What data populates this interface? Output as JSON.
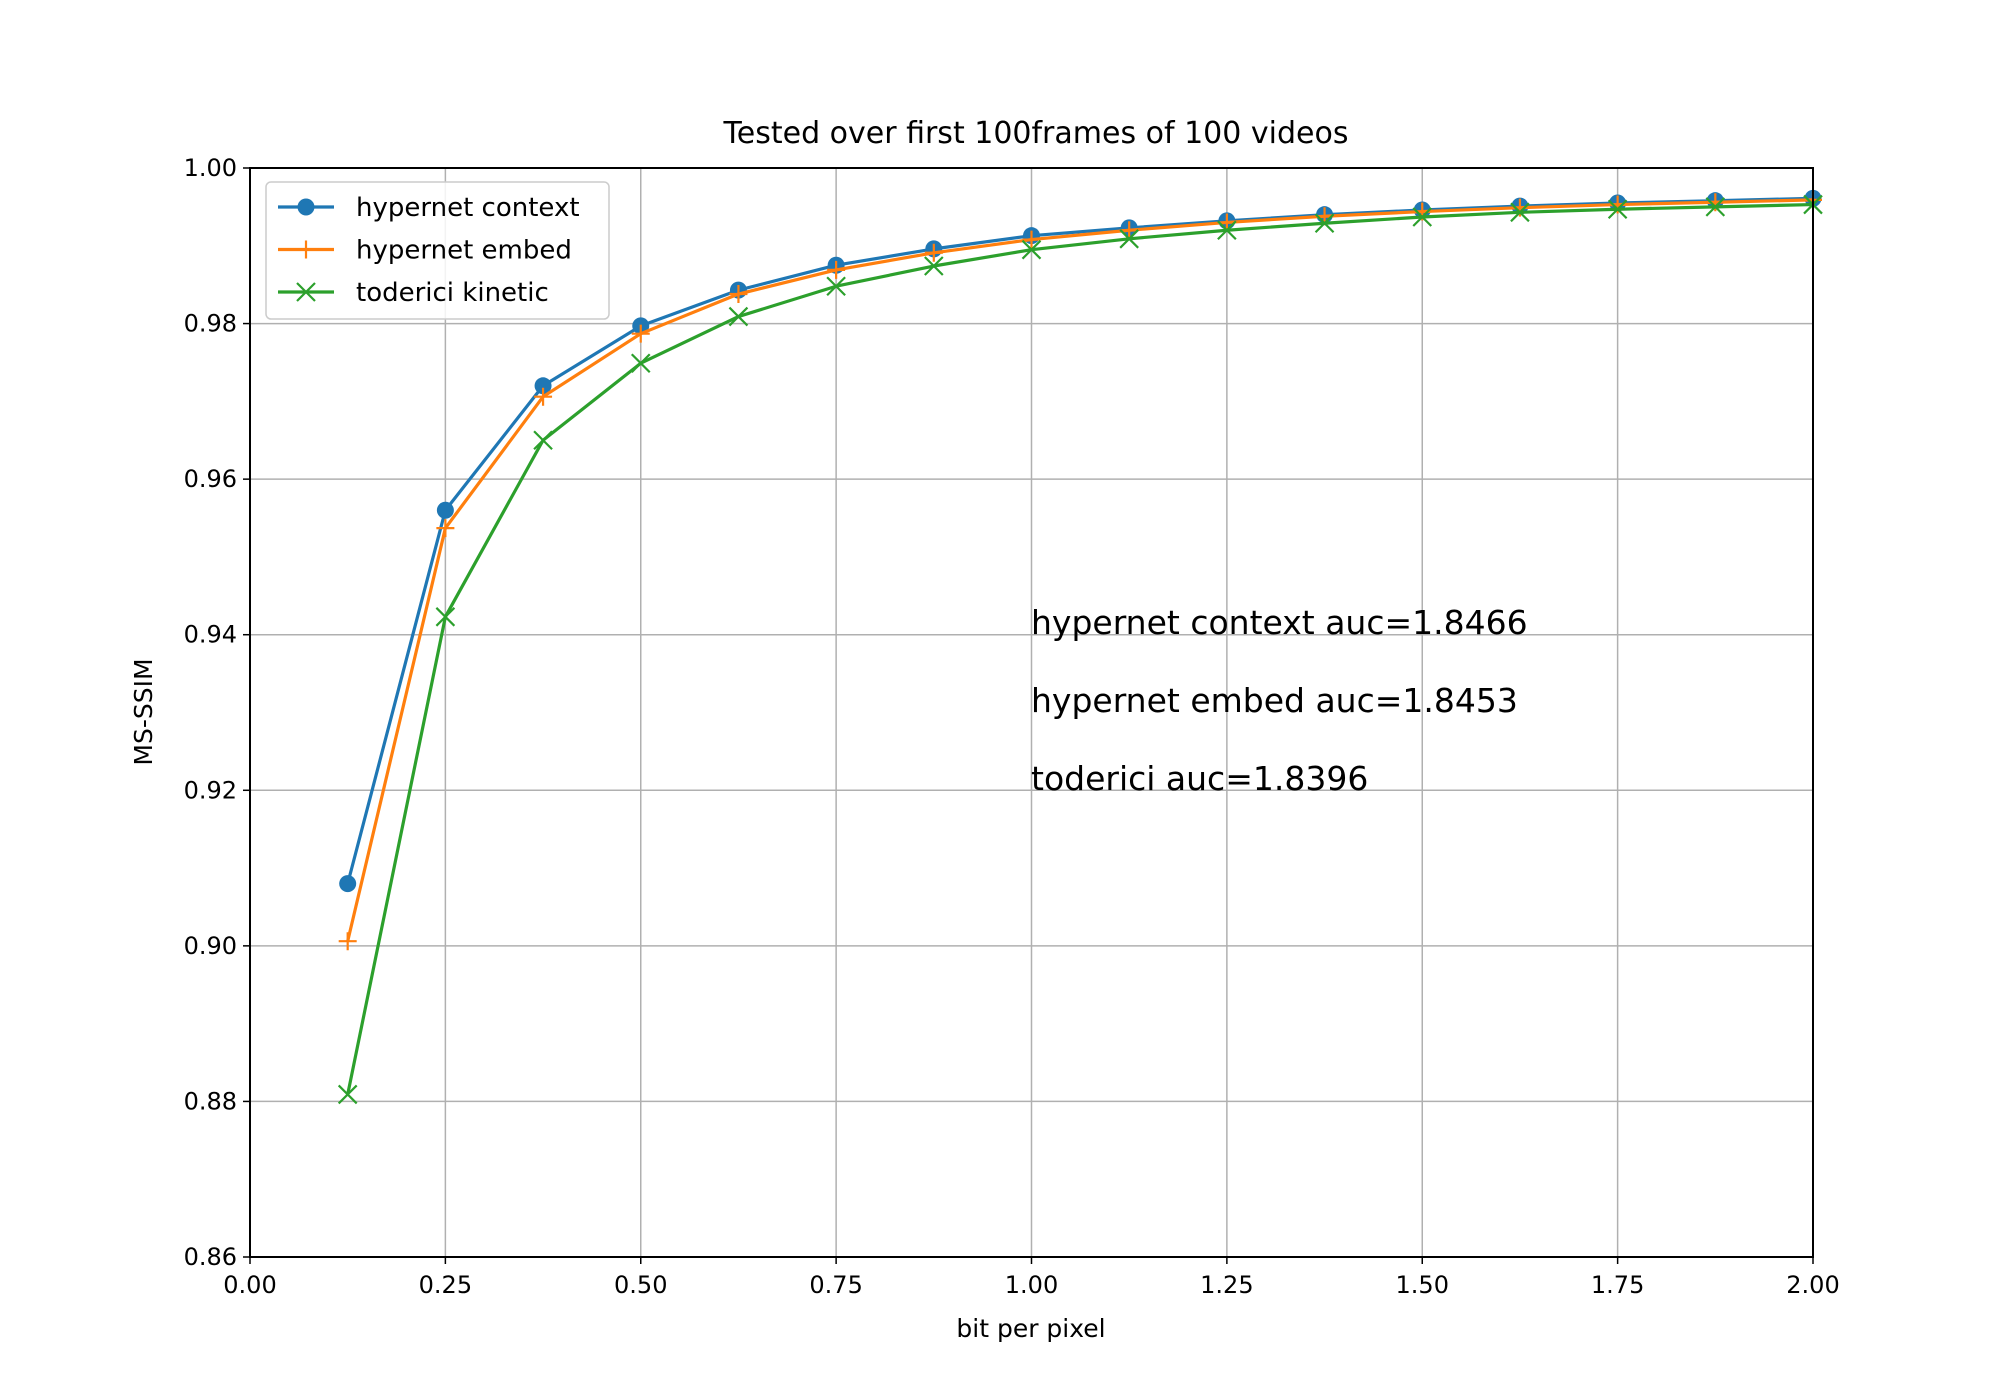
{
  "chart_data": {
    "type": "line",
    "title": "Tested over first 100frames of 100 videos",
    "xlabel": "bit per pixel",
    "ylabel": "MS-SSIM",
    "xlim": [
      0.0,
      2.0
    ],
    "ylim": [
      0.86,
      1.0
    ],
    "xticks": [
      "0.00",
      "0.25",
      "0.50",
      "0.75",
      "1.00",
      "1.25",
      "1.50",
      "1.75",
      "2.00"
    ],
    "yticks": [
      "0.86",
      "0.88",
      "0.90",
      "0.92",
      "0.94",
      "0.96",
      "0.98",
      "1.00"
    ],
    "grid": true,
    "legend_position": "top-left",
    "x": [
      0.125,
      0.25,
      0.375,
      0.5,
      0.625,
      0.75,
      0.875,
      1.0,
      1.125,
      1.25,
      1.375,
      1.5,
      1.625,
      1.75,
      1.875,
      2.0
    ],
    "series": [
      {
        "name": "hypernet context",
        "color": "#1f77b4",
        "marker": "circle",
        "values": [
          0.908,
          0.956,
          0.972,
          0.9797,
          0.9843,
          0.9875,
          0.9896,
          0.9913,
          0.9923,
          0.9932,
          0.994,
          0.9946,
          0.9951,
          0.9955,
          0.9958,
          0.9961
        ]
      },
      {
        "name": "hypernet embed",
        "color": "#ff7f0e",
        "marker": "plus",
        "values": [
          0.9006,
          0.9537,
          0.9706,
          0.9787,
          0.9838,
          0.9869,
          0.9891,
          0.9908,
          0.992,
          0.993,
          0.9938,
          0.9944,
          0.9949,
          0.9953,
          0.9956,
          0.9959
        ]
      },
      {
        "name": "toderici kinetic",
        "color": "#2ca02c",
        "marker": "x",
        "values": [
          0.8809,
          0.9423,
          0.965,
          0.9749,
          0.9809,
          0.9848,
          0.9874,
          0.9895,
          0.9909,
          0.992,
          0.9929,
          0.9937,
          0.9943,
          0.9947,
          0.995,
          0.9953
        ]
      }
    ],
    "annotations": [
      "hypernet context auc=1.8466",
      "hypernet embed auc=1.8453",
      "toderici auc=1.8396"
    ]
  }
}
